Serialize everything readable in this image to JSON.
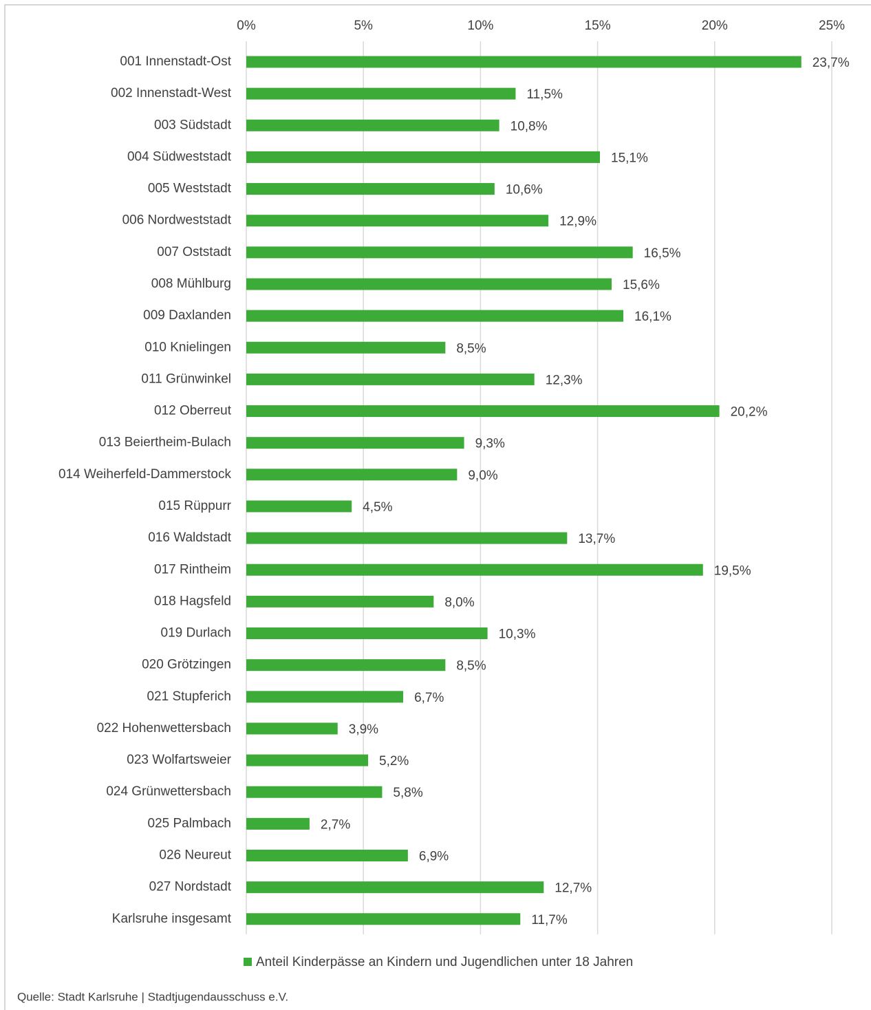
{
  "chart_data": {
    "type": "bar",
    "orientation": "horizontal",
    "categories": [
      "001 Innenstadt-Ost",
      "002 Innenstadt-West",
      "003 Südstadt",
      "004 Südweststadt",
      "005 Weststadt",
      "006 Nordweststadt",
      "007 Oststadt",
      "008 Mühlburg",
      "009 Daxlanden",
      "010 Knielingen",
      "011 Grünwinkel",
      "012 Oberreut",
      "013 Beiertheim-Bulach",
      "014 Weiherfeld-Dammerstock",
      "015 Rüppurr",
      "016 Waldstadt",
      "017 Rintheim",
      "018 Hagsfeld",
      "019 Durlach",
      "020 Grötzingen",
      "021 Stupferich",
      "022 Hohenwettersbach",
      "023 Wolfartsweier",
      "024 Grünwettersbach",
      "025 Palmbach",
      "026 Neureut",
      "027 Nordstadt",
      "Karlsruhe insgesamt"
    ],
    "series": [
      {
        "name": "Anteil Kinderpässe an Kindern und Jugendlichen unter 18 Jahren",
        "color": "#3dab37",
        "values": [
          23.7,
          11.5,
          10.8,
          15.1,
          10.6,
          12.9,
          16.5,
          15.6,
          16.1,
          8.5,
          12.3,
          20.2,
          9.3,
          9.0,
          4.5,
          13.7,
          19.5,
          8.0,
          10.3,
          8.5,
          6.7,
          3.9,
          5.2,
          5.8,
          2.7,
          6.9,
          12.7,
          11.7
        ],
        "value_labels": [
          "23,7%",
          "11,5%",
          "10,8%",
          "15,1%",
          "10,6%",
          "12,9%",
          "16,5%",
          "15,6%",
          "16,1%",
          "8,5%",
          "12,3%",
          "20,2%",
          "9,3%",
          "9,0%",
          "4,5%",
          "13,7%",
          "19,5%",
          "8,0%",
          "10,3%",
          "8,5%",
          "6,7%",
          "3,9%",
          "5,2%",
          "5,8%",
          "2,7%",
          "6,9%",
          "12,7%",
          "11,7%"
        ]
      }
    ],
    "xlim": [
      0,
      25
    ],
    "xticks": [
      {
        "value": 0,
        "label": "0%"
      },
      {
        "value": 5,
        "label": "5%"
      },
      {
        "value": 10,
        "label": "10%"
      },
      {
        "value": 15,
        "label": "15%"
      },
      {
        "value": 20,
        "label": "20%"
      },
      {
        "value": 25,
        "label": "25%"
      }
    ],
    "grid": true,
    "legend": "bottom",
    "source": "Quelle: Stadt Karlsruhe | Stadtjugendausschuss e.V."
  }
}
